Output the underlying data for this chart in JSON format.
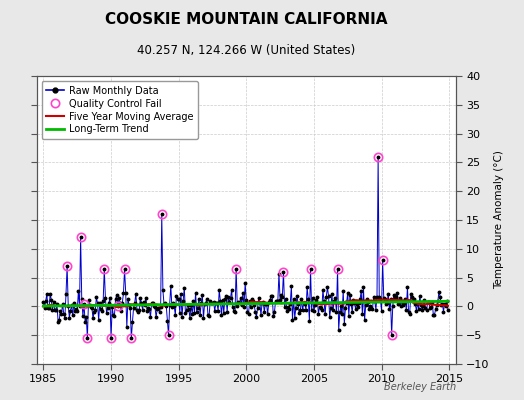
{
  "title": "COOSKIE MOUNTAIN CALIFORNIA",
  "subtitle": "40.257 N, 124.266 W (United States)",
  "ylabel_right": "Temperature Anomaly (°C)",
  "watermark": "Berkeley Earth",
  "xlim": [
    1984.5,
    2015.5
  ],
  "ylim": [
    -10,
    40
  ],
  "yticks": [
    -10,
    -5,
    0,
    5,
    10,
    15,
    20,
    25,
    30,
    35,
    40
  ],
  "xticks": [
    1985,
    1990,
    1995,
    2000,
    2005,
    2010,
    2015
  ],
  "bg_color": "#e8e8e8",
  "plot_bg_color": "#ffffff",
  "raw_line_color": "#0000cc",
  "raw_marker_color": "#000000",
  "qc_fail_color": "#ff44cc",
  "moving_avg_color": "#cc0000",
  "trend_color": "#00bb00",
  "seed": 42,
  "n_points": 360,
  "start_year": 1985.0,
  "end_year": 2014.9167,
  "spikes": [
    {
      "year": 1986.75,
      "value": 7.0,
      "qc": true
    },
    {
      "year": 1987.75,
      "value": 12.0,
      "qc": true
    },
    {
      "year": 1988.25,
      "value": -5.5,
      "qc": true
    },
    {
      "year": 1989.5,
      "value": 6.5,
      "qc": true
    },
    {
      "year": 1990.0,
      "value": -5.5,
      "qc": true
    },
    {
      "year": 1991.0,
      "value": 6.5,
      "qc": true
    },
    {
      "year": 1991.5,
      "value": -5.5,
      "qc": true
    },
    {
      "year": 1993.75,
      "value": 16.0,
      "qc": true
    },
    {
      "year": 1994.25,
      "value": -5.0,
      "qc": true
    },
    {
      "year": 1999.25,
      "value": 6.5,
      "qc": true
    },
    {
      "year": 2002.75,
      "value": 6.0,
      "qc": true
    },
    {
      "year": 2004.75,
      "value": 6.5,
      "qc": true
    },
    {
      "year": 2006.75,
      "value": 6.5,
      "qc": true
    },
    {
      "year": 2007.25,
      "value": -3.0,
      "qc": false
    },
    {
      "year": 2009.75,
      "value": 26.0,
      "qc": true
    },
    {
      "year": 2010.1,
      "value": 8.0,
      "qc": true
    },
    {
      "year": 2010.75,
      "value": -5.0,
      "qc": true
    }
  ]
}
